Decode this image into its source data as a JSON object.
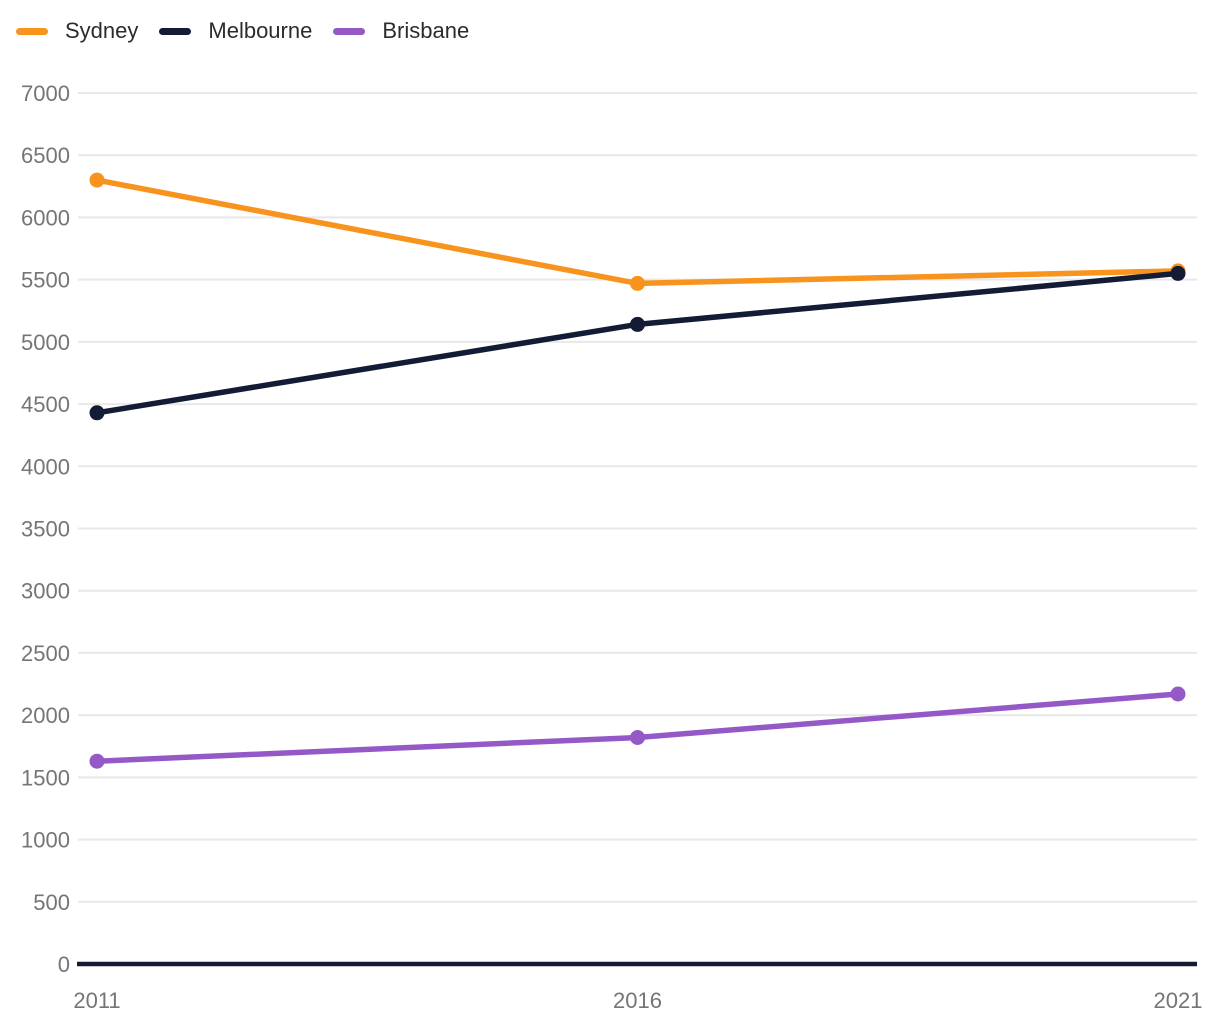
{
  "chart_data": {
    "type": "line",
    "x": [
      "2011",
      "2016",
      "2021"
    ],
    "series": [
      {
        "name": "Sydney",
        "color": "#F8941E",
        "values": [
          6300,
          5470,
          5570
        ]
      },
      {
        "name": "Melbourne",
        "color": "#131B35",
        "values": [
          4430,
          5140,
          5550
        ]
      },
      {
        "name": "Brisbane",
        "color": "#9459C6",
        "values": [
          1630,
          1820,
          2170
        ]
      }
    ],
    "ylim": [
      0,
      7000
    ],
    "y_tick_step": 500,
    "y_tick_labels": [
      "0",
      "500",
      "1000",
      "1500",
      "2000",
      "2500",
      "3000",
      "3500",
      "4000",
      "4500",
      "5000",
      "5500",
      "6000",
      "6500",
      "7000"
    ],
    "grid": true,
    "legend_position": "top-left",
    "styles": {
      "grid_color": "#E8E8EA",
      "axis_color": "#131B35",
      "tick_label_color": "#757579",
      "legend_text_color": "#2b2b31",
      "background": "#ffffff"
    }
  }
}
